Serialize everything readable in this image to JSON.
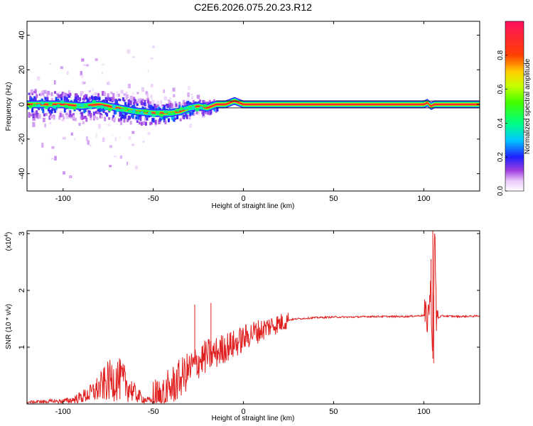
{
  "figure_title": "C2E6.2026.075.20.23.R12",
  "chart_data": [
    {
      "type": "heatmap",
      "name": "spectrogram",
      "xlabel": "Height of straight line (km)",
      "ylabel": "Frequency (Hz)",
      "xlim": [
        -120,
        131
      ],
      "ylim": [
        -50,
        48
      ],
      "x_ticks": [
        -100,
        -50,
        0,
        50,
        100
      ],
      "x_tick_labels": [
        "-100",
        "-50",
        "0",
        "50",
        "100"
      ],
      "y_ticks": [
        -40,
        -20,
        0,
        20,
        40
      ],
      "y_tick_labels": [
        "-40",
        "-20",
        "0",
        "20",
        "40"
      ],
      "ridge": {
        "x": [
          -120,
          -110,
          -100,
          -90,
          -80,
          -70,
          -60,
          -50,
          -45,
          -40,
          -35,
          -30,
          -25,
          -20,
          -15,
          -10,
          -5,
          0,
          10,
          50,
          100,
          102,
          104,
          106,
          131
        ],
        "y": [
          0,
          0,
          0,
          -1,
          0,
          -2,
          -4,
          -5,
          -5,
          -5,
          -4,
          -2,
          -1,
          -2,
          0,
          0,
          2,
          0,
          0,
          0,
          0,
          1,
          -1,
          0,
          0
        ]
      },
      "reference_lines_hz": [
        2,
        -2
      ],
      "colorbar": {
        "label": "Normalized spectral amplitude",
        "range": [
          0,
          1
        ],
        "ticks": [
          0.0,
          0.2,
          0.4,
          0.6,
          0.8
        ],
        "tick_labels": [
          "0.0",
          "0.2",
          "0.4",
          "0.6",
          "0.8"
        ]
      }
    },
    {
      "type": "line",
      "name": "snr",
      "xlabel": "Height of straight line (km)",
      "ylabel": "SNR (10 * v/v)",
      "y_multiplier_label": "(x10",
      "y_multiplier_exp": "4",
      "xlim": [
        -120,
        131
      ],
      "ylim": [
        0,
        3.05
      ],
      "x_ticks": [
        -100,
        -50,
        0,
        50,
        100
      ],
      "x_tick_labels": [
        "-100",
        "-50",
        "0",
        "50",
        "100"
      ],
      "y_ticks": [
        1,
        2,
        3
      ],
      "y_tick_labels": [
        "1",
        "2",
        "3"
      ],
      "color": "#e02020",
      "series": [
        {
          "name": "SNR",
          "x": [
            -120,
            -110,
            -100,
            -95,
            -90,
            -85,
            -80,
            -75,
            -70,
            -65,
            -60,
            -55,
            -50,
            -45,
            -40,
            -35,
            -30,
            -25,
            -20,
            -15,
            -10,
            -5,
            0,
            5,
            10,
            15,
            20,
            25,
            30,
            40,
            50,
            60,
            70,
            80,
            90,
            95,
            100,
            102,
            104,
            105,
            106,
            107,
            110,
            120,
            131
          ],
          "y": [
            0.03,
            0.04,
            0.05,
            0.07,
            0.12,
            0.18,
            0.28,
            0.4,
            0.45,
            0.35,
            0.18,
            0.08,
            0.05,
            0.12,
            0.3,
            0.45,
            0.6,
            0.75,
            0.85,
            0.9,
            1.0,
            1.05,
            1.15,
            1.25,
            1.3,
            1.38,
            1.42,
            1.48,
            1.5,
            1.52,
            1.53,
            1.53,
            1.54,
            1.54,
            1.54,
            1.55,
            1.56,
            1.5,
            2.0,
            0.8,
            3.05,
            1.5,
            1.55,
            1.54,
            1.55
          ]
        }
      ]
    }
  ]
}
